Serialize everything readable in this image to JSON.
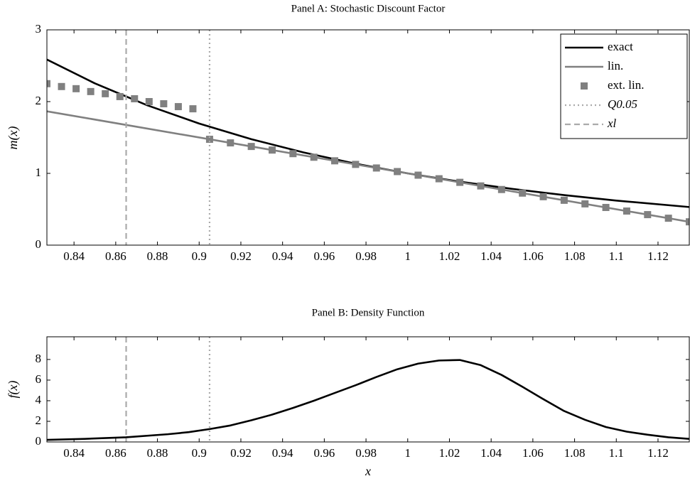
{
  "chart_data": [
    {
      "type": "line",
      "title": "Panel A: Stochastic Discount Factor",
      "y_label": "m(x)",
      "xlim": [
        0.827,
        1.135
      ],
      "ylim": [
        0,
        3
      ],
      "xticks": [
        0.84,
        0.86,
        0.88,
        0.9,
        0.92,
        0.94,
        0.96,
        0.98,
        1,
        1.02,
        1.04,
        1.06,
        1.08,
        1.1,
        1.12
      ],
      "yticks": [
        0,
        1,
        2,
        3
      ],
      "legend": "upper right",
      "series": [
        {
          "name": "exact",
          "color": "#000000",
          "style": "solid",
          "x": [
            0.827,
            0.85,
            0.875,
            0.9,
            0.925,
            0.95,
            0.975,
            1,
            1.025,
            1.05,
            1.075,
            1.1,
            1.135
          ],
          "values": [
            2.586,
            2.254,
            1.95,
            1.694,
            1.477,
            1.292,
            1.135,
            1,
            0.884,
            0.784,
            0.697,
            0.621,
            0.531
          ]
        },
        {
          "name": "lin.",
          "color": "#808080",
          "style": "solid",
          "x": [
            0.827,
            1.135
          ],
          "values": [
            1.865,
            0.325
          ]
        },
        {
          "name": "ext. lin.",
          "color": "#808080",
          "style": "markers",
          "x": [
            0.827,
            0.834,
            0.841,
            0.848,
            0.855,
            0.862,
            0.869,
            0.876,
            0.883,
            0.89,
            0.897,
            0.905,
            0.915,
            0.925,
            0.935,
            0.945,
            0.955,
            0.965,
            0.975,
            0.985,
            0.995,
            1.005,
            1.015,
            1.025,
            1.035,
            1.045,
            1.055,
            1.065,
            1.075,
            1.085,
            1.095,
            1.105,
            1.115,
            1.125,
            1.135
          ],
          "values": [
            2.25,
            2.21,
            2.18,
            2.14,
            2.11,
            2.07,
            2.04,
            2.0,
            1.97,
            1.93,
            1.9,
            1.475,
            1.425,
            1.375,
            1.325,
            1.275,
            1.225,
            1.175,
            1.125,
            1.075,
            1.025,
            0.975,
            0.925,
            0.875,
            0.825,
            0.775,
            0.725,
            0.675,
            0.625,
            0.575,
            0.525,
            0.475,
            0.425,
            0.375,
            0.325
          ]
        },
        {
          "name": "Q0.05",
          "color": "#aaaaaa",
          "style": "dotted",
          "xline": 0.905
        },
        {
          "name": "xl",
          "color": "#aaaaaa",
          "style": "dashed",
          "xline": 0.865
        }
      ]
    },
    {
      "type": "line",
      "title": "Panel B: Density Function",
      "y_label": "f(x)",
      "x_label": "x",
      "xlim": [
        0.827,
        1.135
      ],
      "ylim": [
        0,
        10.2
      ],
      "xticks": [
        0.84,
        0.86,
        0.88,
        0.9,
        0.92,
        0.94,
        0.96,
        0.98,
        1,
        1.02,
        1.04,
        1.06,
        1.08,
        1.1,
        1.12
      ],
      "yticks": [
        0,
        2,
        4,
        6,
        8
      ],
      "series": [
        {
          "color": "#000000",
          "style": "solid",
          "x": [
            0.827,
            0.845,
            0.865,
            0.885,
            0.895,
            0.905,
            0.915,
            0.925,
            0.935,
            0.945,
            0.955,
            0.965,
            0.975,
            0.985,
            0.995,
            1.005,
            1.015,
            1.025,
            1.035,
            1.045,
            1.055,
            1.065,
            1.075,
            1.085,
            1.095,
            1.105,
            1.115,
            1.125,
            1.135
          ],
          "values": [
            0.2,
            0.3,
            0.45,
            0.75,
            0.95,
            1.25,
            1.6,
            2.1,
            2.65,
            3.3,
            4.0,
            4.75,
            5.5,
            6.3,
            7.05,
            7.6,
            7.9,
            7.95,
            7.45,
            6.5,
            5.35,
            4.15,
            3.0,
            2.15,
            1.45,
            1.0,
            0.7,
            0.45,
            0.3
          ]
        },
        {
          "color": "#aaaaaa",
          "style": "dotted",
          "xline": 0.905
        },
        {
          "color": "#aaaaaa",
          "style": "dashed",
          "xline": 0.865
        }
      ]
    }
  ]
}
